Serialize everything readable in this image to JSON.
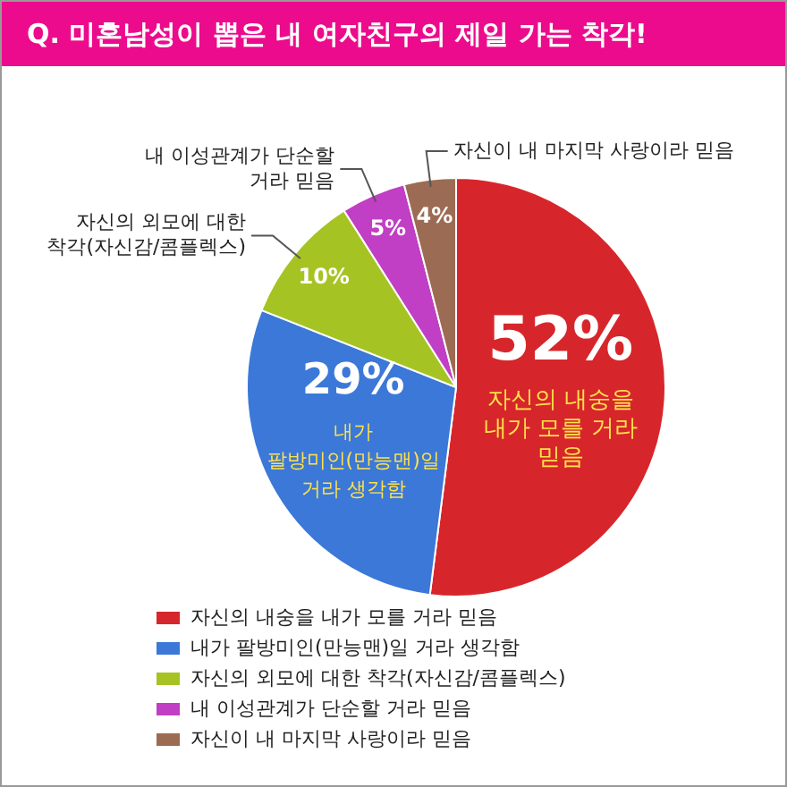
{
  "chart_data": {
    "type": "pie",
    "title": "Q. 미혼남성이 뽑은 내 여자친구의 제일 가는 착각!",
    "categories": [
      "자신의 내숭을 내가 모를 거라 믿음",
      "내가 팔방미인(만능맨)일 거라 생각함",
      "자신의 외모에 대한 착각(자신감/콤플렉스)",
      "내 이성관계가 단순할 거라 믿음",
      "자신이 내 마지막 사랑이라 믿음"
    ],
    "values": [
      52,
      29,
      10,
      5,
      4
    ],
    "colors": [
      "#d7262b",
      "#3b78d8",
      "#a5c423",
      "#c03fc4",
      "#9c6b53"
    ],
    "value_labels": [
      "52%",
      "29%",
      "10%",
      "5%",
      "4%"
    ],
    "legend": "bottom left"
  }
}
